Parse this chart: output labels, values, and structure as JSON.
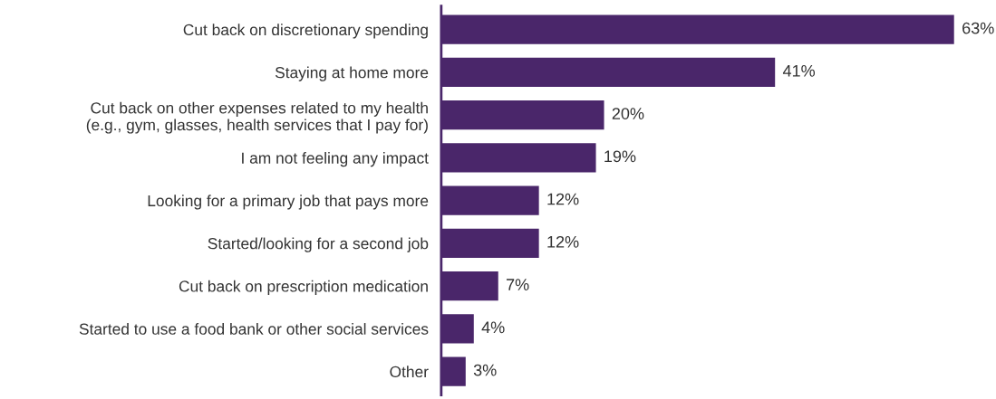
{
  "chart_data": {
    "type": "bar",
    "orientation": "horizontal",
    "categories": [
      "Cut back on discretionary spending",
      "Staying at home more",
      "Cut back on other expenses related to my health\n(e.g., gym, glasses, health services that I pay for)",
      "I am not feeling any impact",
      "Looking for a primary job that pays more",
      "Started/looking for a second job",
      "Cut back on prescription medication",
      "Started to use a food bank or other social services",
      "Other"
    ],
    "values": [
      63,
      41,
      20,
      19,
      12,
      12,
      7,
      4,
      3
    ],
    "value_labels": [
      "63%",
      "41%",
      "20%",
      "19%",
      "12%",
      "12%",
      "7%",
      "4%",
      "3%"
    ],
    "color": "#4a266a",
    "grid": false,
    "legend": false
  }
}
